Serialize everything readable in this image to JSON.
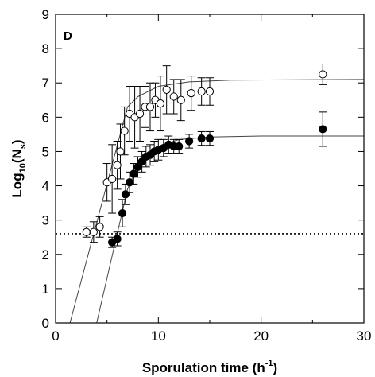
{
  "chart_data": {
    "type": "scatter",
    "panel_label": "D",
    "xlabel": "Sporulation time (h",
    "xlabel_sup": "-1",
    "xlabel_end": ")",
    "ylabel": "Log",
    "ylabel_sub": "10",
    "ylabel_mid": "(N",
    "ylabel_sub2": "s",
    "ylabel_end": ")",
    "xlim": [
      0,
      30
    ],
    "ylim": [
      0,
      9
    ],
    "xticks": [
      0,
      10,
      20,
      30
    ],
    "yticks": [
      0,
      1,
      2,
      3,
      4,
      5,
      6,
      7,
      8,
      9
    ],
    "detection_limit": 2.6,
    "grid": false,
    "series": [
      {
        "marker": "open-circle",
        "points": [
          {
            "x": 3.0,
            "y": 2.65,
            "err": 0.15
          },
          {
            "x": 3.7,
            "y": 2.65,
            "err": 0.3
          },
          {
            "x": 4.3,
            "y": 2.8,
            "err": 0.3
          },
          {
            "x": 5.0,
            "y": 4.1,
            "err": 0.55
          },
          {
            "x": 5.5,
            "y": 4.2,
            "err": 1.0
          },
          {
            "x": 6.0,
            "y": 4.6,
            "err": 0.7
          },
          {
            "x": 6.3,
            "y": 5.0,
            "err": 0.8
          },
          {
            "x": 6.7,
            "y": 5.6,
            "err": 0.7
          },
          {
            "x": 7.2,
            "y": 6.1,
            "err": 0.8
          },
          {
            "x": 7.7,
            "y": 6.0,
            "err": 0.9
          },
          {
            "x": 8.2,
            "y": 6.1,
            "err": 0.8
          },
          {
            "x": 8.7,
            "y": 6.3,
            "err": 0.6
          },
          {
            "x": 9.2,
            "y": 6.3,
            "err": 0.7
          },
          {
            "x": 9.7,
            "y": 6.5,
            "err": 0.5
          },
          {
            "x": 10.2,
            "y": 6.4,
            "err": 0.8
          },
          {
            "x": 10.8,
            "y": 6.8,
            "err": 0.7
          },
          {
            "x": 11.5,
            "y": 6.6,
            "err": 0.5
          },
          {
            "x": 12.2,
            "y": 6.5,
            "err": 0.6
          },
          {
            "x": 13.2,
            "y": 6.7,
            "err": 0.5
          },
          {
            "x": 14.2,
            "y": 6.75,
            "err": 0.4
          },
          {
            "x": 15.0,
            "y": 6.75,
            "err": 0.4
          },
          {
            "x": 26.0,
            "y": 7.25,
            "err": 0.3
          }
        ],
        "fit": [
          [
            1.4,
            0
          ],
          [
            7.0,
            6.3
          ],
          [
            8.0,
            6.6
          ],
          [
            10.0,
            6.9
          ],
          [
            13.0,
            7.03
          ],
          [
            17.0,
            7.08
          ],
          [
            30.0,
            7.1
          ]
        ]
      },
      {
        "marker": "filled-circle",
        "points": [
          {
            "x": 5.5,
            "y": 2.35,
            "err": 0.15
          },
          {
            "x": 6.0,
            "y": 2.45,
            "err": 0.2
          },
          {
            "x": 6.5,
            "y": 3.2,
            "err": 0.4
          },
          {
            "x": 6.8,
            "y": 3.75,
            "err": 0.3
          },
          {
            "x": 7.2,
            "y": 4.1,
            "err": 0.3
          },
          {
            "x": 7.6,
            "y": 4.35,
            "err": 0.3
          },
          {
            "x": 8.0,
            "y": 4.55,
            "err": 0.3
          },
          {
            "x": 8.4,
            "y": 4.7,
            "err": 0.3
          },
          {
            "x": 8.8,
            "y": 4.85,
            "err": 0.3
          },
          {
            "x": 9.2,
            "y": 4.9,
            "err": 0.3
          },
          {
            "x": 9.6,
            "y": 5.0,
            "err": 0.3
          },
          {
            "x": 10.0,
            "y": 5.05,
            "err": 0.3
          },
          {
            "x": 10.5,
            "y": 5.1,
            "err": 0.25
          },
          {
            "x": 11.0,
            "y": 5.2,
            "err": 0.25
          },
          {
            "x": 11.5,
            "y": 5.15,
            "err": 0.2
          },
          {
            "x": 12.0,
            "y": 5.15,
            "err": 0.2
          },
          {
            "x": 13.0,
            "y": 5.3,
            "err": 0.2
          },
          {
            "x": 14.2,
            "y": 5.38,
            "err": 0.2
          },
          {
            "x": 15.0,
            "y": 5.38,
            "err": 0.2
          },
          {
            "x": 26.0,
            "y": 5.65,
            "err": 0.5
          }
        ],
        "fit": [
          [
            4.0,
            0
          ],
          [
            7.0,
            3.9
          ],
          [
            8.0,
            4.6
          ],
          [
            10.0,
            5.15
          ],
          [
            12.0,
            5.35
          ],
          [
            15.0,
            5.42
          ],
          [
            20.0,
            5.45
          ],
          [
            30.0,
            5.45
          ]
        ]
      }
    ]
  }
}
